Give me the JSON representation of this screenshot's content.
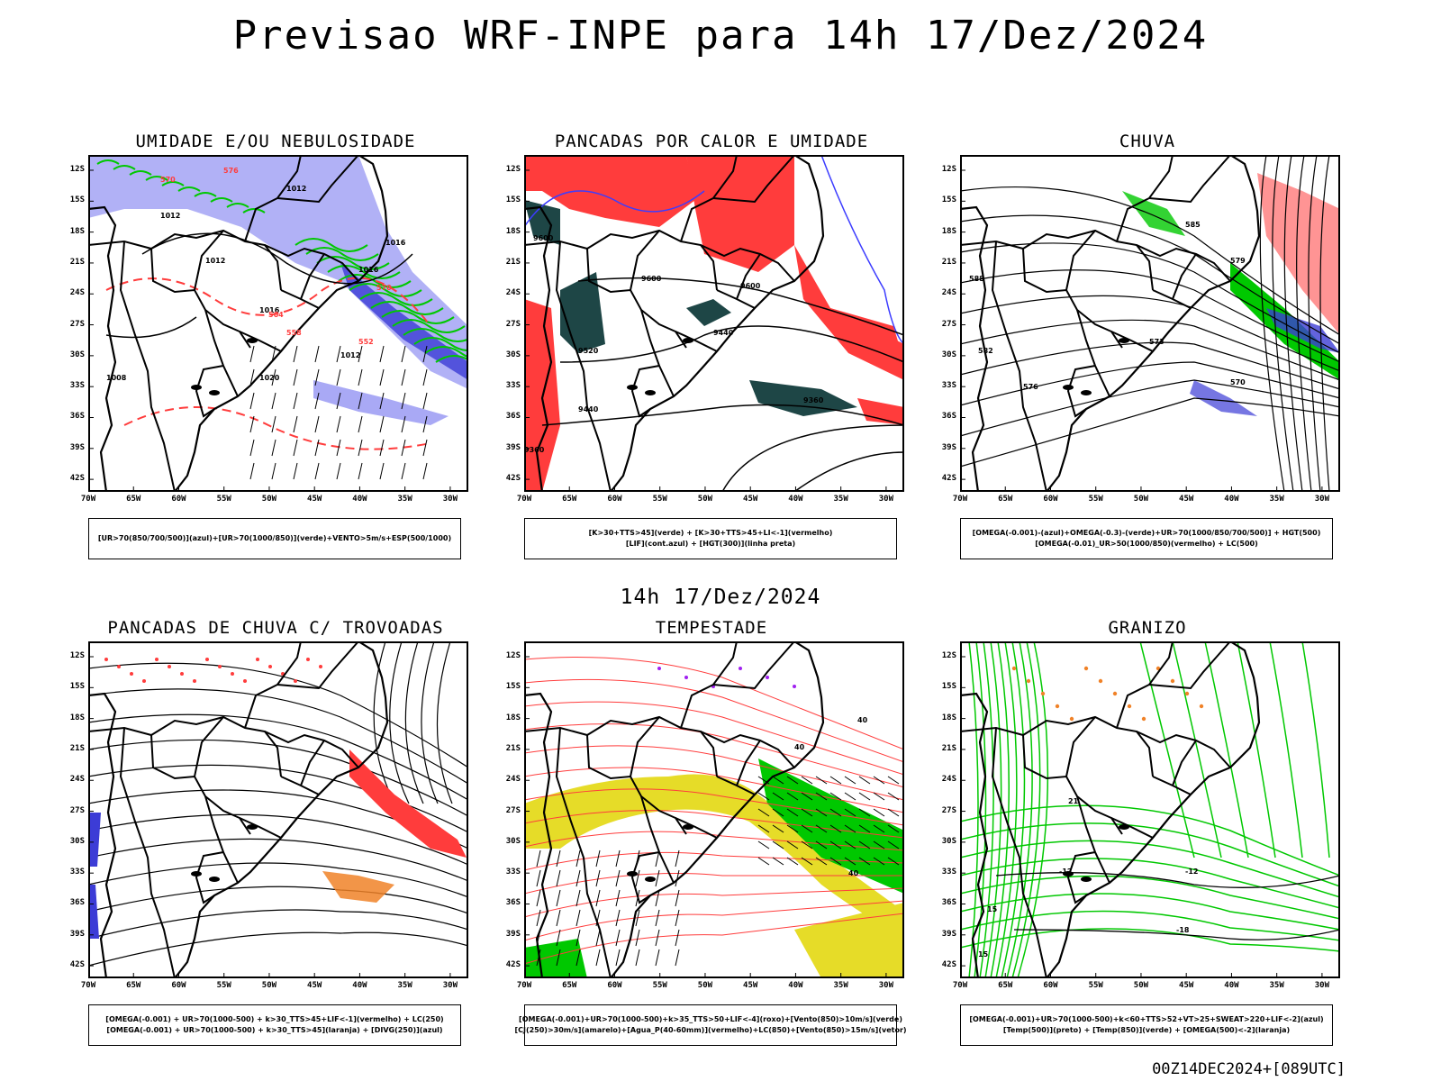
{
  "title": "Previsao WRF-INPE  para 14h 17/Dez/2024",
  "mid_title": "14h 17/Dez/2024",
  "footer": "00Z14DEC2024+[089UTC]",
  "axes": {
    "lat_ticks": [
      "12S",
      "15S",
      "18S",
      "21S",
      "24S",
      "27S",
      "30S",
      "33S",
      "36S",
      "39S",
      "42S"
    ],
    "lon_ticks": [
      "70W",
      "65W",
      "60W",
      "55W",
      "50W",
      "45W",
      "40W",
      "35W",
      "30W"
    ]
  },
  "colors": {
    "blue_cloud": "#a9a9f5",
    "deep_blue": "#3c3cd6",
    "green": "#00c800",
    "red": "#ff3c3c",
    "dark_teal": "#1e4646",
    "yellow": "#e6dc28",
    "orange": "#f08228",
    "purple": "#a020f0"
  },
  "panels": [
    {
      "title": "UMIDADE E/OU NEBULOSIDADE",
      "legend": [
        "[UR>70(850/700/500)](azul)+[UR>70(1000/850)](verde)+VENTO>5m/s+ESP(500/1000)"
      ],
      "labels": [
        "1012",
        "1012",
        "1012",
        "1016",
        "1016",
        "1020",
        "1016",
        "1012",
        "1008",
        "570",
        "576",
        "564",
        "558",
        "552",
        "570"
      ]
    },
    {
      "title": "PANCADAS POR CALOR E UMIDADE",
      "legend": [
        "[K>30+TTS>45](verde) + [K>30+TTS>45+LI<-1](vermelho)",
        "[LIF](cont.azul) + [HGT(300)](linha preta)"
      ],
      "labels": [
        "9600",
        "9600",
        "9520",
        "9440",
        "9360",
        "9440",
        "9360",
        "9600"
      ]
    },
    {
      "title": "CHUVA",
      "legend": [
        "[OMEGA(-0.001)-(azul)+OMEGA(-0.3)-(verde)+UR>70(1000/850/700/500)] + HGT(500)",
        "[OMEGA(-0.01)_UR>50(1000/850)(vermelho) + LC(500)"
      ],
      "labels": [
        "585",
        "579",
        "573",
        "576",
        "582",
        "588",
        "570"
      ]
    },
    {
      "title": "PANCADAS DE CHUVA C/ TROVOADAS",
      "legend": [
        "[OMEGA(-0.001) + UR>70(1000-500) + k>30_TTS>45+LIF<-1](vermelho) + LC(250)",
        "[OMEGA(-0.001) + UR>70(1000-500) + k>30_TTS>45](laranja) + [DIVG(250)](azul)"
      ],
      "labels": []
    },
    {
      "title": "TEMPESTADE",
      "legend": [
        "[OMEGA(-0.001)+UR>70(1000-500)+k>35_TTS>50+LIF<-4](roxo)+[Vento(850)>10m/s](verde)",
        "[CJ(250)>30m/s](amarelo)+[Agua_P(40-60mm)](vermelho)+LC(850)+[Vento(850)>15m/s](vetor)"
      ],
      "labels": [
        "40",
        "40",
        "40"
      ]
    },
    {
      "title": "GRANIZO",
      "legend": [
        "[OMEGA(-0.001)+UR>70(1000-500)+k<60+TTS>52+VT>25+SWEAT>220+LIF<-2](azul)",
        "[Temp(500)](preto) + [Temp(850)](verde) + [OMEGA(500)<-2](laranja)"
      ],
      "labels": [
        "-12",
        "-18",
        "15",
        "15",
        "-12",
        "21"
      ]
    }
  ]
}
